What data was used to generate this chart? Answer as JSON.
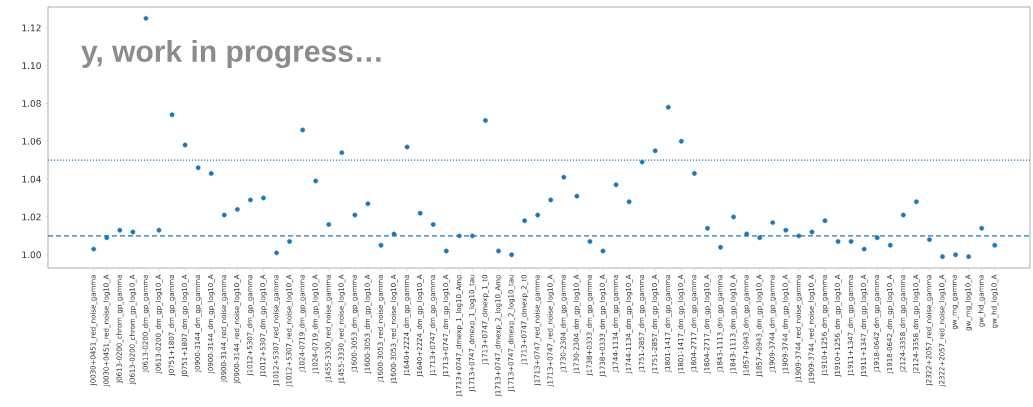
{
  "chart_data": {
    "type": "scatter",
    "categories": [
      "J0030+0451_red_noise_gamma",
      "J0030+0451_red_noise_log10_A",
      "J0613-0200_chrom_gp_gamma",
      "J0613-0200_chrom_gp_log10_A",
      "J0613-0200_dm_gp_gamma",
      "J0613-0200_dm_gp_log10_A",
      "J0751+1807_dm_gp_gamma",
      "J0751+1807_dm_gp_log10_A",
      "J0900-3144_dm_gp_gamma",
      "J0900-3144_dm_gp_log10_A",
      "J0900-3144_red_noise_gamma",
      "J0900-3144_red_noise_log10_A",
      "J1012+5307_dm_gp_gamma",
      "J1012+5307_dm_gp_log10_A",
      "J1012+5307_red_noise_gamma",
      "J1012+5307_red_noise_log10_A",
      "J1024-0719_dm_gp_gamma",
      "J1024-0719_dm_gp_log10_A",
      "J1455-3330_red_noise_gamma",
      "J1455-3330_red_noise_log10_A",
      "J1600-3053_dm_gp_gamma",
      "J1600-3053_dm_gp_log10_A",
      "J1600-3053_red_noise_gamma",
      "J1600-3053_red_noise_log10_A",
      "J1640+2224_dm_gp_gamma",
      "J1640+2224_dm_gp_log10_A",
      "J1713+0747_dm_gp_gamma",
      "J1713+0747_dm_gp_log10_A",
      "J1713+0747_dmexp_1_log10_Amp",
      "J1713+0747_dmexp_1_log10_tau",
      "J1713+0747_dmexp_1_t0",
      "J1713+0747_dmexp_2_log10_Amp",
      "J1713+0747_dmexp_2_log10_tau",
      "J1713+0747_dmexp_2_t0",
      "J1713+0747_red_noise_gamma",
      "J1713+0747_red_noise_log10_A",
      "J1730-2304_dm_gp_gamma",
      "J1730-2304_dm_gp_log10_A",
      "J1738+0333_dm_gp_gamma",
      "J1738+0333_dm_gp_log10_A",
      "J1744-1134_dm_gp_gamma",
      "J1744-1134_dm_gp_log10_A",
      "J1751-2857_dm_gp_gamma",
      "J1751-2857_dm_gp_log10_A",
      "J1801-1417_dm_gp_gamma",
      "J1801-1417_dm_gp_log10_A",
      "J1804-2717_dm_gp_gamma",
      "J1804-2717_dm_gp_log10_A",
      "J1843-1113_dm_gp_gamma",
      "J1843-1113_dm_gp_log10_A",
      "J1857+0943_dm_gp_gamma",
      "J1857+0943_dm_gp_log10_A",
      "J1909-3744_dm_gp_gamma",
      "J1909-3744_dm_gp_log10_A",
      "J1909-3744_red_noise_gamma",
      "J1909-3744_red_noise_log10_A",
      "J1910+1256_dm_gp_gamma",
      "J1910+1256_dm_gp_log10_A",
      "J1911+1347_dm_gp_gamma",
      "J1911+1347_dm_gp_log10_A",
      "J1918-0642_dm_gp_gamma",
      "J1918-0642_dm_gp_log10_A",
      "J2124-3358_dm_gp_gamma",
      "J2124-3358_dm_gp_log10_A",
      "J2322+2057_red_noise_gamma",
      "J2322+2057_red_noise_log10_A",
      "gw_mg_gamma",
      "gw_mg_log10_A",
      "gw_hd_gamma",
      "gw_hd_log10_A"
    ],
    "values": [
      1.003,
      1.009,
      1.013,
      1.012,
      1.125,
      1.013,
      1.074,
      1.058,
      1.046,
      1.043,
      1.021,
      1.024,
      1.029,
      1.03,
      1.001,
      1.007,
      1.066,
      1.039,
      1.016,
      1.054,
      1.021,
      1.027,
      1.005,
      1.011,
      1.057,
      1.022,
      1.016,
      1.002,
      1.01,
      1.01,
      1.071,
      1.002,
      1.0,
      1.018,
      1.021,
      1.029,
      1.041,
      1.031,
      1.007,
      1.002,
      1.037,
      1.028,
      1.049,
      1.055,
      1.078,
      1.06,
      1.043,
      1.014,
      1.004,
      1.02,
      1.011,
      1.009,
      1.017,
      1.013,
      1.01,
      1.012,
      1.018,
      1.007,
      1.007,
      1.003,
      1.009,
      1.005,
      1.021,
      1.028,
      1.008,
      0.999,
      1.0,
      0.999,
      1.014,
      1.005
    ],
    "color": "#1f77b4",
    "marker": "circle",
    "ylim": [
      0.993,
      1.131
    ],
    "yticks": [
      {
        "value": 1.0,
        "label": "1.00"
      },
      {
        "value": 1.02,
        "label": "1.02"
      },
      {
        "value": 1.04,
        "label": "1.04"
      },
      {
        "value": 1.06,
        "label": "1.06"
      },
      {
        "value": 1.08,
        "label": "1.08"
      },
      {
        "value": 1.1,
        "label": "1.10"
      },
      {
        "value": 1.12,
        "label": "1.12"
      }
    ],
    "ref_lines": [
      {
        "axis": "y",
        "value": 1.01,
        "color": "#1f77b4",
        "line_style": "dashed"
      },
      {
        "axis": "y",
        "value": 1.05,
        "color": "#1f77b4",
        "line_style": "dotted"
      }
    ],
    "annotations": [
      "y, work in progress…"
    ]
  }
}
